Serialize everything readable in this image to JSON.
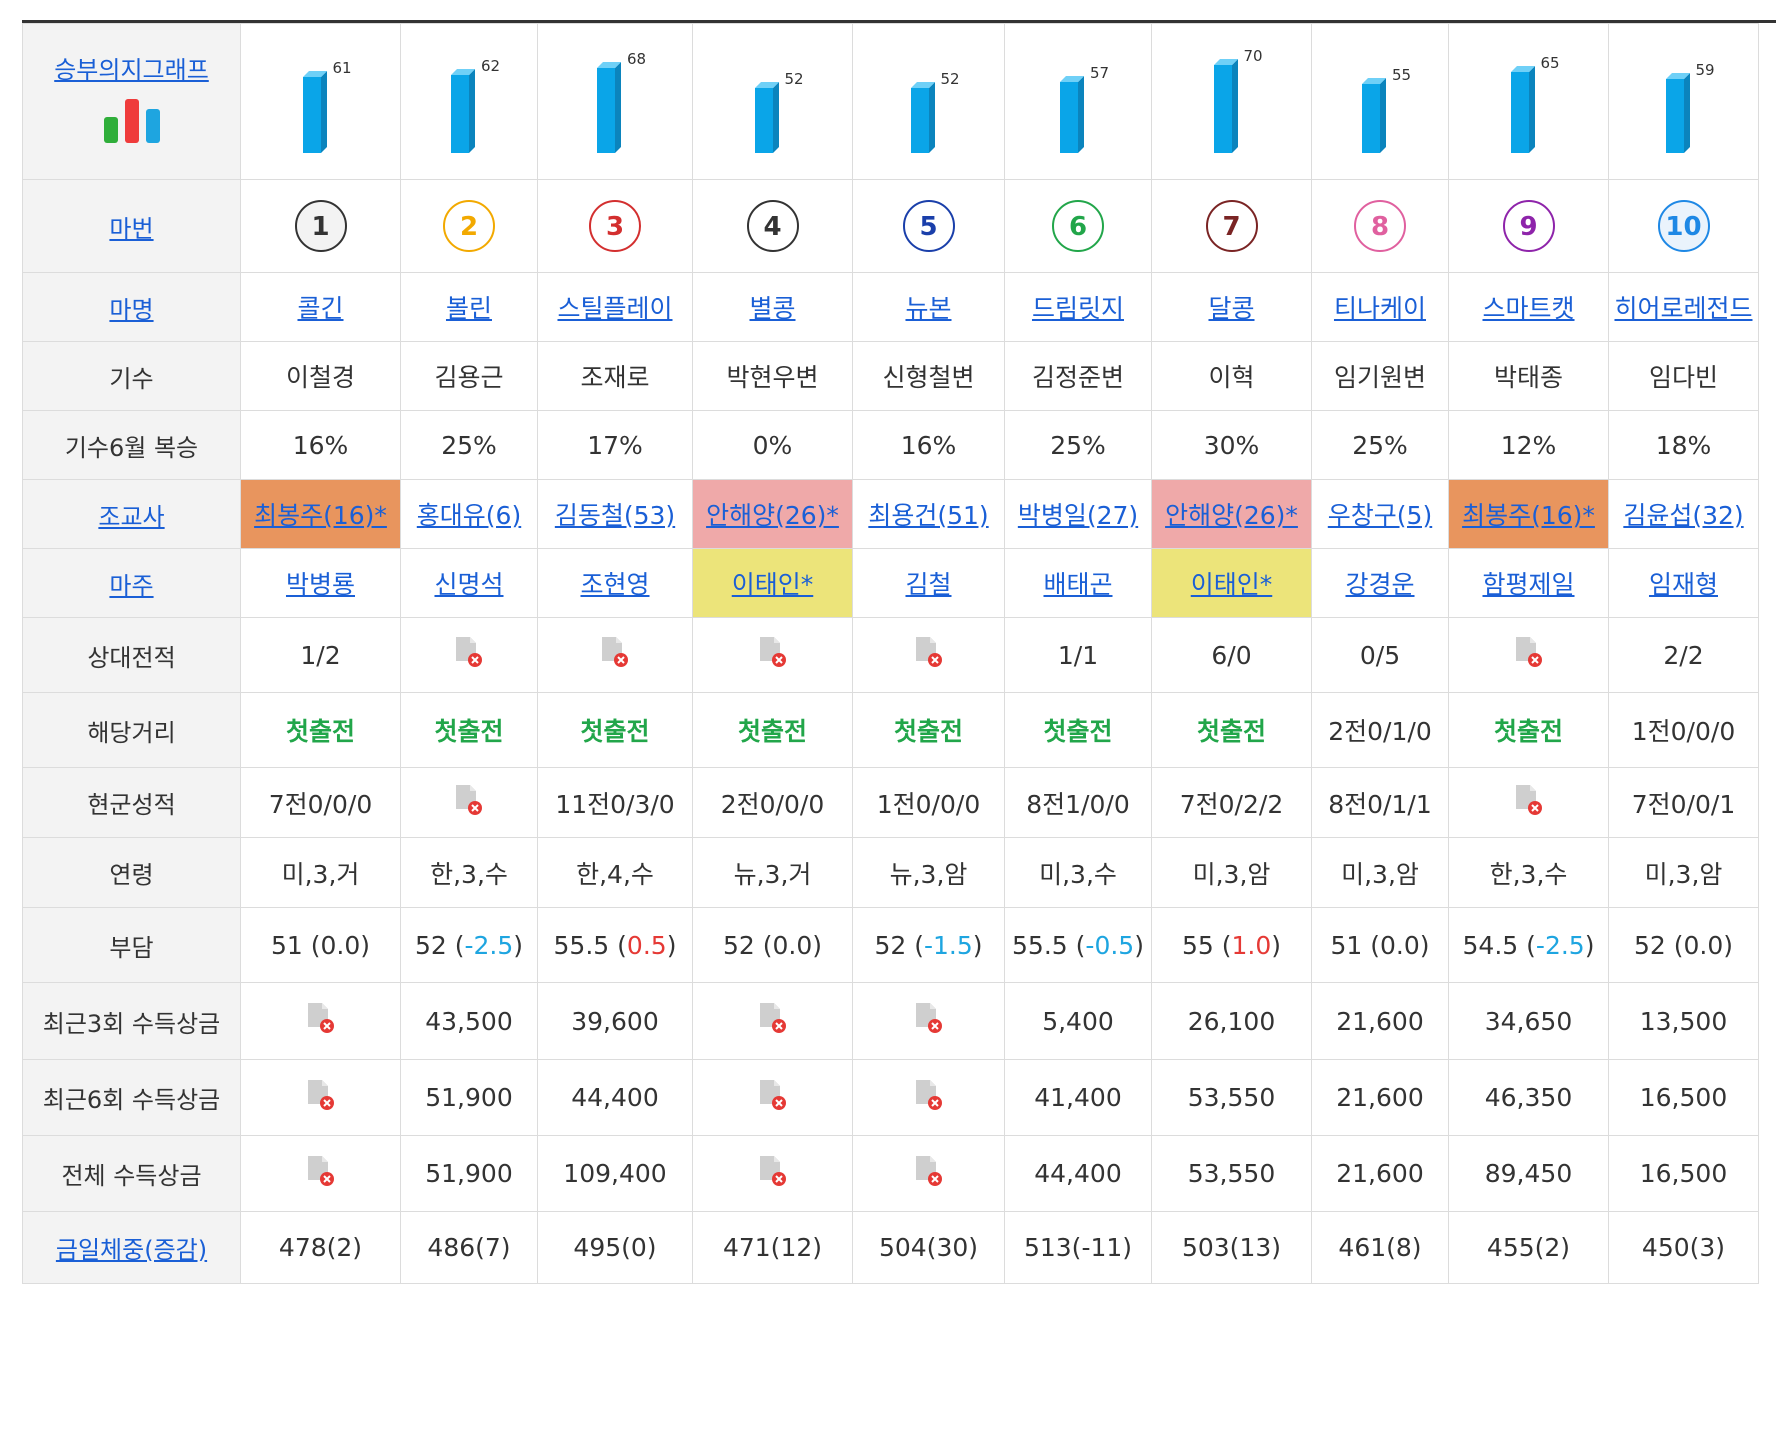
{
  "header_label": "승부의지그래프",
  "row_labels": {
    "number": "마번",
    "name": "마명",
    "jockey": "기수",
    "jockey_rate": "기수6월 복승",
    "trainer": "조교사",
    "owner": "마주",
    "head_to_head": "상대전적",
    "distance": "해당거리",
    "current_record": "현군성적",
    "age": "연령",
    "weight": "부담",
    "prize3": "최근3회 수득상금",
    "prize6": "최근6회 수득상금",
    "prize_total": "전체 수득상금",
    "body_weight": "금일체중(증감)"
  },
  "colors": {
    "bar": "#0aa5e8",
    "link": "#1a5fd6",
    "first_race": "#22a64a",
    "negative": "#1ea5e0",
    "positive": "#e53935",
    "highlight_orange": "#e8955e",
    "highlight_pink": "#efa9a9",
    "highlight_yellow": "#ece47a"
  },
  "horses": [
    {
      "graph": 61,
      "number": "1",
      "num_color": "#333333",
      "num_bg": "#f3f3f3",
      "name": "콜긴",
      "jockey": "이철경",
      "jockey_rate": "16%",
      "trainer": "최봉주(16)*",
      "trainer_hl": "orange",
      "owner": "박병룡",
      "owner_hl": "",
      "h2h": "1/2",
      "distance": "첫출전",
      "record": "7전0/0/0",
      "age": "미,3,거",
      "weight_base": "51",
      "weight_delta": "(0.0)",
      "weight_sign": "zero",
      "prize3": "",
      "prize6": "",
      "prize_total": "",
      "body_weight": "478(2)"
    },
    {
      "graph": 62,
      "number": "2",
      "num_color": "#f2a900",
      "num_bg": "#ffffff",
      "name": "볼린",
      "jockey": "김용근",
      "jockey_rate": "25%",
      "trainer": "홍대유(6)",
      "trainer_hl": "",
      "owner": "신명석",
      "owner_hl": "",
      "h2h": "",
      "distance": "첫출전",
      "record": "",
      "age": "한,3,수",
      "weight_base": "52",
      "weight_delta": "-2.5",
      "weight_sign": "neg",
      "prize3": "43,500",
      "prize6": "51,900",
      "prize_total": "51,900",
      "body_weight": "486(7)"
    },
    {
      "graph": 68,
      "number": "3",
      "num_color": "#d32f2f",
      "num_bg": "#ffffff",
      "name": "스틸플레이",
      "jockey": "조재로",
      "jockey_rate": "17%",
      "trainer": "김동철(53)",
      "trainer_hl": "",
      "owner": "조현영",
      "owner_hl": "",
      "h2h": "",
      "distance": "첫출전",
      "record": "11전0/3/0",
      "age": "한,4,수",
      "weight_base": "55.5",
      "weight_delta": "0.5",
      "weight_sign": "pos",
      "prize3": "39,600",
      "prize6": "44,400",
      "prize_total": "109,400",
      "body_weight": "495(0)"
    },
    {
      "graph": 52,
      "number": "4",
      "num_color": "#333333",
      "num_bg": "#ffffff",
      "name": "별콩",
      "jockey": "박현우변",
      "jockey_rate": "0%",
      "trainer": "안해양(26)*",
      "trainer_hl": "pink",
      "owner": "이태인*",
      "owner_hl": "yellow",
      "h2h": "",
      "distance": "첫출전",
      "record": "2전0/0/0",
      "age": "뉴,3,거",
      "weight_base": "52",
      "weight_delta": "(0.0)",
      "weight_sign": "zero",
      "prize3": "",
      "prize6": "",
      "prize_total": "",
      "body_weight": "471(12)"
    },
    {
      "graph": 52,
      "number": "5",
      "num_color": "#1a3faa",
      "num_bg": "#ffffff",
      "name": "뉴본",
      "jockey": "신형철변",
      "jockey_rate": "16%",
      "trainer": "최용건(51)",
      "trainer_hl": "",
      "owner": "김철",
      "owner_hl": "",
      "h2h": "",
      "distance": "첫출전",
      "record": "1전0/0/0",
      "age": "뉴,3,암",
      "weight_base": "52",
      "weight_delta": "-1.5",
      "weight_sign": "neg",
      "prize3": "",
      "prize6": "",
      "prize_total": "",
      "body_weight": "504(30)"
    },
    {
      "graph": 57,
      "number": "6",
      "num_color": "#22a64a",
      "num_bg": "#ffffff",
      "name": "드림릿지",
      "jockey": "김정준변",
      "jockey_rate": "25%",
      "trainer": "박병일(27)",
      "trainer_hl": "",
      "owner": "배태곤",
      "owner_hl": "",
      "h2h": "1/1",
      "distance": "첫출전",
      "record": "8전1/0/0",
      "age": "미,3,수",
      "weight_base": "55.5",
      "weight_delta": "-0.5",
      "weight_sign": "neg",
      "prize3": "5,400",
      "prize6": "41,400",
      "prize_total": "44,400",
      "body_weight": "513(-11)"
    },
    {
      "graph": 70,
      "number": "7",
      "num_color": "#7a2424",
      "num_bg": "#ffffff",
      "name": "달콩",
      "jockey": "이혁",
      "jockey_rate": "30%",
      "trainer": "안해양(26)*",
      "trainer_hl": "pink",
      "owner": "이태인*",
      "owner_hl": "yellow",
      "h2h": "6/0",
      "distance": "첫출전",
      "record": "7전0/2/2",
      "age": "미,3,암",
      "weight_base": "55",
      "weight_delta": "1.0",
      "weight_sign": "pos",
      "prize3": "26,100",
      "prize6": "53,550",
      "prize_total": "53,550",
      "body_weight": "503(13)"
    },
    {
      "graph": 55,
      "number": "8",
      "num_color": "#e0609f",
      "num_bg": "#ffffff",
      "name": "티나케이",
      "jockey": "임기원변",
      "jockey_rate": "25%",
      "trainer": "우창구(5)",
      "trainer_hl": "",
      "owner": "강경운",
      "owner_hl": "",
      "h2h": "0/5",
      "distance": "2전0/1/0",
      "record": "8전0/1/1",
      "age": "미,3,암",
      "weight_base": "51",
      "weight_delta": "(0.0)",
      "weight_sign": "zero",
      "prize3": "21,600",
      "prize6": "21,600",
      "prize_total": "21,600",
      "body_weight": "461(8)"
    },
    {
      "graph": 65,
      "number": "9",
      "num_color": "#8e24aa",
      "num_bg": "#ffffff",
      "name": "스마트캣",
      "jockey": "박태종",
      "jockey_rate": "12%",
      "trainer": "최봉주(16)*",
      "trainer_hl": "orange",
      "owner": "함평제일",
      "owner_hl": "",
      "h2h": "",
      "distance": "첫출전",
      "record": "",
      "age": "한,3,수",
      "weight_base": "54.5",
      "weight_delta": "-2.5",
      "weight_sign": "neg",
      "prize3": "34,650",
      "prize6": "46,350",
      "prize_total": "89,450",
      "body_weight": "455(2)"
    },
    {
      "graph": 59,
      "number": "10",
      "num_color": "#1e88e5",
      "num_bg": "#eaf3fc",
      "name": "히어로레전드",
      "jockey": "임다빈",
      "jockey_rate": "18%",
      "trainer": "김윤섭(32)",
      "trainer_hl": "",
      "owner": "임재형",
      "owner_hl": "",
      "h2h": "2/2",
      "distance": "1전0/0/0",
      "record": "7전0/0/1",
      "age": "미,3,암",
      "weight_base": "52",
      "weight_delta": "(0.0)",
      "weight_sign": "zero",
      "prize3": "13,500",
      "prize6": "16,500",
      "prize_total": "16,500",
      "body_weight": "450(3)"
    }
  ]
}
